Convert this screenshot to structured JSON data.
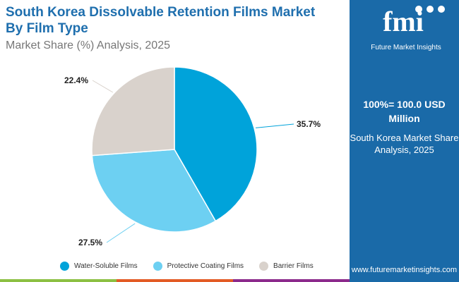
{
  "title_line1": "South Korea Dissolvable Retention Films Market",
  "title_line2": "By Film Type",
  "subtitle": "Market Share (%) Analysis, 2025",
  "panel": {
    "total": "100%= 100.0 USD Million",
    "desc": "South Korea Market Share Analysis, 2025",
    "url": "www.futuremarketinsights.com",
    "logo_text": "fmi",
    "logo_sub": "Future Market Insights"
  },
  "chart_data": {
    "type": "pie",
    "categories": [
      "Water-Soluble Films",
      "Protective Coating Films",
      "Barrier Films"
    ],
    "values": [
      35.7,
      27.5,
      22.4
    ],
    "labels": [
      "35.7%",
      "27.5%",
      "22.4%"
    ],
    "colors": [
      "#00a3da",
      "#6dd0f2",
      "#d9d2cc"
    ],
    "legend_placement": "bottom"
  },
  "colors": {
    "brand": "#1a6aa8",
    "bar": [
      "#8cc043",
      "#e35b25",
      "#8c2a8c",
      "#1a6aa8"
    ]
  }
}
